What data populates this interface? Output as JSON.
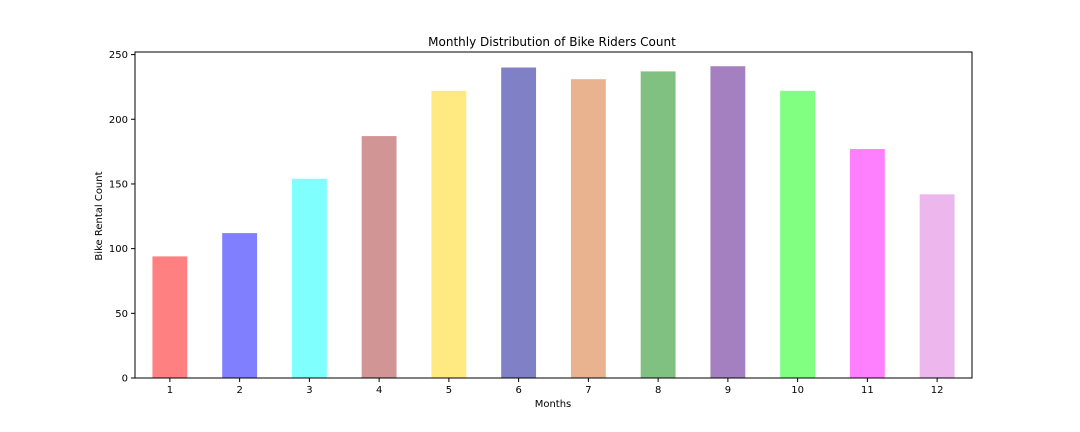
{
  "chart_data": {
    "type": "bar",
    "title": "Monthly Distribution of Bike Riders Count",
    "xlabel": "Months",
    "ylabel": "Bike Rental Count",
    "categories": [
      "1",
      "2",
      "3",
      "4",
      "5",
      "6",
      "7",
      "8",
      "9",
      "10",
      "11",
      "12"
    ],
    "values": [
      94,
      112,
      154,
      187,
      222,
      240,
      231,
      237,
      241,
      222,
      177,
      142
    ],
    "ylim": [
      0,
      252
    ],
    "yticks": [
      0,
      50,
      100,
      150,
      200,
      250
    ],
    "grid": false,
    "legend": "none",
    "bar_colors": [
      "#ff8080",
      "#8080ff",
      "#80ffff",
      "#d19595",
      "#ffe980",
      "#8080c6",
      "#e9b38f",
      "#80c080",
      "#a580c0",
      "#80ff80",
      "#ff80ff",
      "#ecb7ec"
    ]
  }
}
